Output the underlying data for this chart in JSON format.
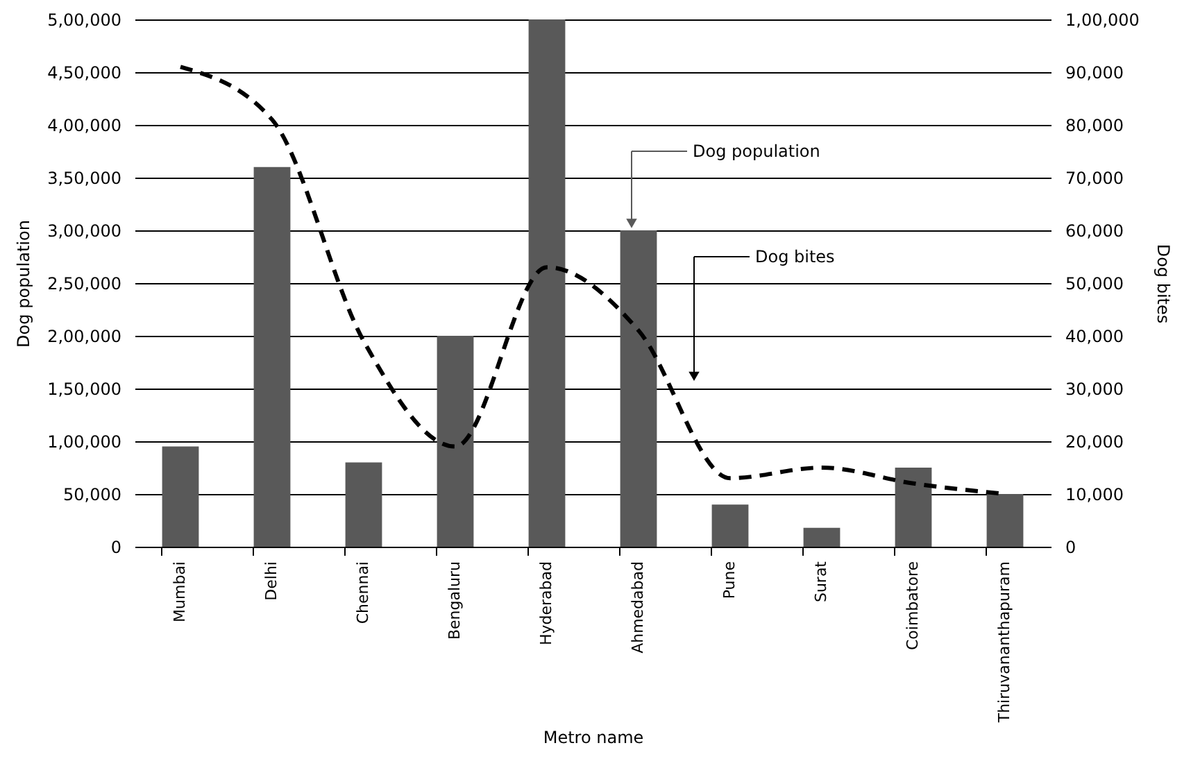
{
  "chart_data": {
    "type": "bar",
    "xlabel": "Metro name",
    "ylabel": "Dog population",
    "y2label": "Dog bites",
    "categories": [
      "Mumbai",
      "Delhi",
      "Chennai",
      "Bengaluru",
      "Hyderabad",
      "Ahmedabad",
      "Pune",
      "Surat",
      "Coimbatore",
      "Thiruvananthapuram"
    ],
    "series": [
      {
        "name": "Dog population",
        "type": "bar",
        "color": "#595959",
        "values": [
          95000,
          360000,
          80000,
          200000,
          500000,
          300000,
          40000,
          18000,
          75000,
          50000
        ]
      },
      {
        "name": "Dog bites",
        "type": "line",
        "axis": "y2",
        "color": "#000000",
        "line_style": "dashed",
        "values": [
          91000,
          81000,
          39000,
          19000,
          53000,
          41000,
          13000,
          15000,
          12000,
          10000
        ]
      }
    ],
    "ylim": [
      0,
      500000
    ],
    "yticks": [
      {
        "value": 0,
        "label": "0"
      },
      {
        "value": 50000,
        "label": "50,000"
      },
      {
        "value": 100000,
        "label": "1,00,000"
      },
      {
        "value": 150000,
        "label": "1,50,000"
      },
      {
        "value": 200000,
        "label": "2,00,000"
      },
      {
        "value": 250000,
        "label": "2,50,000"
      },
      {
        "value": 300000,
        "label": "3,00,000"
      },
      {
        "value": 350000,
        "label": "3,50,000"
      },
      {
        "value": 400000,
        "label": "4,00,000"
      },
      {
        "value": 450000,
        "label": "4,50,000"
      },
      {
        "value": 500000,
        "label": "5,00,000"
      }
    ],
    "y2lim": [
      0,
      100000
    ],
    "y2ticks": [
      {
        "value": 0,
        "label": "0"
      },
      {
        "value": 10000,
        "label": "10,000"
      },
      {
        "value": 20000,
        "label": "20,000"
      },
      {
        "value": 30000,
        "label": "30,000"
      },
      {
        "value": 40000,
        "label": "40,000"
      },
      {
        "value": 50000,
        "label": "50,000"
      },
      {
        "value": 60000,
        "label": "60,000"
      },
      {
        "value": 70000,
        "label": "70,000"
      },
      {
        "value": 80000,
        "label": "80,000"
      },
      {
        "value": 90000,
        "label": "90,000"
      },
      {
        "value": 100000,
        "label": "1,00,000"
      }
    ],
    "grid": "y",
    "legend": "top right",
    "marker": "none"
  }
}
